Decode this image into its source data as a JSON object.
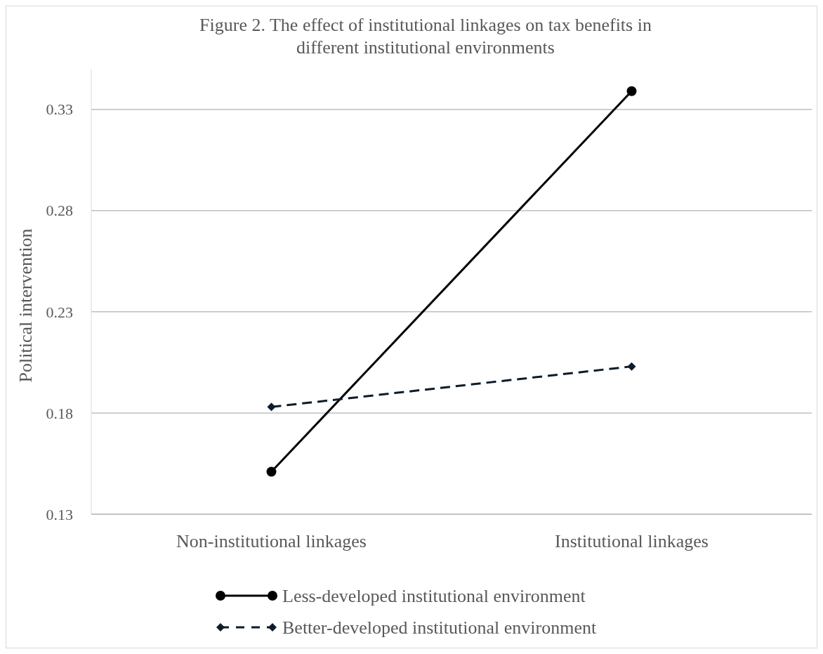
{
  "chart_data": {
    "type": "line",
    "title": "Figure 2. The effect of institutional linkages on tax benefits in different institutional environments",
    "ylabel": "Political intervention",
    "categories": [
      "Non-institutional linkages",
      "Institutional linkages"
    ],
    "series": [
      {
        "name": "Less-developed institutional environment",
        "color": "#000000",
        "values": [
          0.151,
          0.339
        ],
        "marker": "circle",
        "line_style": "solid"
      },
      {
        "name": "Better-developed institutional environment",
        "color": "#0d1b2a",
        "values": [
          0.183,
          0.203
        ],
        "marker": "diamond",
        "line_style": "dashed"
      }
    ],
    "ylim": [
      0.13,
      0.35
    ],
    "yticks": [
      0.13,
      0.18,
      0.23,
      0.28,
      0.33
    ],
    "grid": "y",
    "legend": "bottom"
  }
}
